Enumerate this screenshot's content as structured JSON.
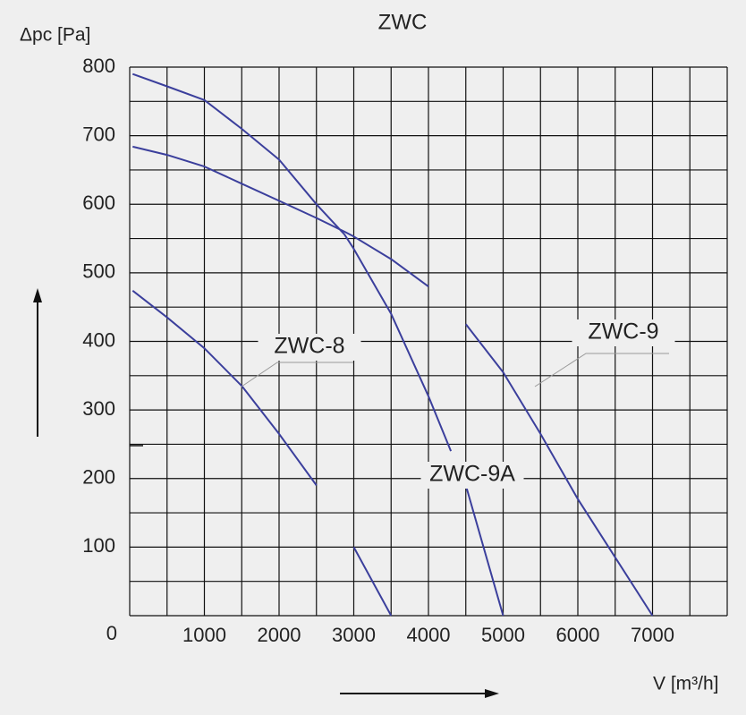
{
  "chart_data": {
    "type": "line",
    "title": "ZWC",
    "y_label": "Δpc [Pa]",
    "x_label": "V [m³/h]",
    "x": [
      40,
      500,
      1000,
      1500,
      2000,
      2500,
      2875,
      3000,
      3500,
      4000,
      4300,
      4450,
      4500,
      5000,
      5500,
      6000,
      6500,
      7000
    ],
    "series": [
      {
        "name": "ZWC-8",
        "color": "#3b3f9c",
        "values": [
          474,
          435,
          390,
          335,
          265,
          190,
          null,
          100,
          0,
          null,
          null,
          null,
          null,
          null,
          null,
          null,
          null,
          null
        ]
      },
      {
        "name": "ZWC-9A",
        "color": "#3b3f9c",
        "values": [
          790,
          772,
          752,
          710,
          665,
          600,
          556,
          535,
          440,
          320,
          240,
          null,
          190,
          0,
          null,
          null,
          null,
          null
        ]
      },
      {
        "name": "ZWC-9",
        "color": "#3b3f9c",
        "values": [
          684,
          672,
          655,
          630,
          605,
          580,
          560,
          553,
          520,
          480,
          null,
          null,
          425,
          355,
          265,
          170,
          85,
          0
        ]
      }
    ],
    "xlim": [
      0,
      8000
    ],
    "ylim": [
      0,
      800
    ],
    "xticks": [
      1000,
      2000,
      3000,
      4000,
      5000,
      6000,
      7000
    ],
    "yticks": [
      0,
      100,
      200,
      300,
      400,
      500,
      600,
      700,
      800
    ],
    "grid": true
  }
}
